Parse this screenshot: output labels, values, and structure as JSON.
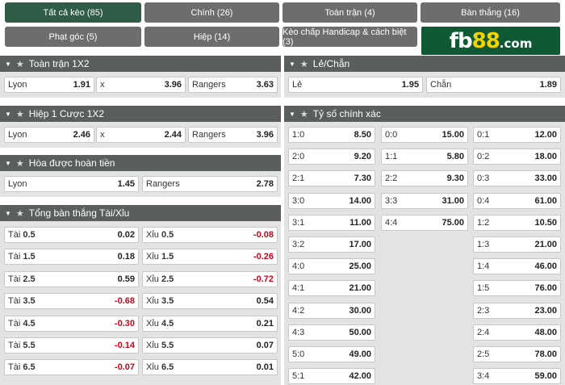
{
  "tabs": [
    {
      "label": "Tất cả kèo (85)"
    },
    {
      "label": "Chính (26)"
    },
    {
      "label": "Toàn trận (4)"
    },
    {
      "label": "Bàn thắng (16)"
    },
    {
      "label": "Phạt góc (5)"
    },
    {
      "label": "Hiệp (14)"
    },
    {
      "label": "Kèo chấp Handicap & cách biệt (3)"
    }
  ],
  "logo": {
    "part1": "fb",
    "part2": "88",
    "part3": ".com"
  },
  "sections": {
    "fulltime_1x2": {
      "title": "Toàn trận 1X2",
      "cells": [
        {
          "label": "Lyon",
          "value": "1.91"
        },
        {
          "label": "x",
          "value": "3.96"
        },
        {
          "label": "Rangers",
          "value": "3.63"
        }
      ]
    },
    "half1_1x2": {
      "title": "Hiệp 1 Cược 1X2",
      "cells": [
        {
          "label": "Lyon",
          "value": "2.46"
        },
        {
          "label": "x",
          "value": "2.44"
        },
        {
          "label": "Rangers",
          "value": "3.96"
        }
      ]
    },
    "draw_no_bet": {
      "title": "Hòa được hoàn tiền",
      "cells": [
        {
          "label": "Lyon",
          "value": "1.45"
        },
        {
          "label": "Rangers",
          "value": "2.78"
        }
      ]
    },
    "over_under": {
      "title": "Tổng bàn thắng Tài/Xỉu",
      "rows": [
        {
          "over_label": "Tài",
          "over_line": "0.5",
          "over_value": "0.02",
          "under_label": "Xỉu",
          "under_line": "0.5",
          "under_value": "-0.08"
        },
        {
          "over_label": "Tài",
          "over_line": "1.5",
          "over_value": "0.18",
          "under_label": "Xỉu",
          "under_line": "1.5",
          "under_value": "-0.26"
        },
        {
          "over_label": "Tài",
          "over_line": "2.5",
          "over_value": "0.59",
          "under_label": "Xỉu",
          "under_line": "2.5",
          "under_value": "-0.72"
        },
        {
          "over_label": "Tài",
          "over_line": "3.5",
          "over_value": "-0.68",
          "under_label": "Xỉu",
          "under_line": "3.5",
          "under_value": "0.54"
        },
        {
          "over_label": "Tài",
          "over_line": "4.5",
          "over_value": "-0.30",
          "under_label": "Xỉu",
          "under_line": "4.5",
          "under_value": "0.21"
        },
        {
          "over_label": "Tài",
          "over_line": "5.5",
          "over_value": "-0.14",
          "under_label": "Xỉu",
          "under_line": "5.5",
          "under_value": "0.07"
        },
        {
          "over_label": "Tài",
          "over_line": "6.5",
          "over_value": "-0.07",
          "under_label": "Xỉu",
          "under_line": "6.5",
          "under_value": "0.01"
        }
      ]
    },
    "odd_even": {
      "title": "Lẻ/Chẵn",
      "cells": [
        {
          "label": "Lẻ",
          "value": "1.95"
        },
        {
          "label": "Chẵn",
          "value": "1.89"
        }
      ]
    },
    "correct_score": {
      "title": "Tỷ số chính xác",
      "col1": [
        {
          "label": "1:0",
          "value": "8.50"
        },
        {
          "label": "2:0",
          "value": "9.20"
        },
        {
          "label": "2:1",
          "value": "7.30"
        },
        {
          "label": "3:0",
          "value": "14.00"
        },
        {
          "label": "3:1",
          "value": "11.00"
        },
        {
          "label": "3:2",
          "value": "17.00"
        },
        {
          "label": "4:0",
          "value": "25.00"
        },
        {
          "label": "4:1",
          "value": "21.00"
        },
        {
          "label": "4:2",
          "value": "30.00"
        },
        {
          "label": "4:3",
          "value": "50.00"
        },
        {
          "label": "5:0",
          "value": "49.00"
        },
        {
          "label": "5:1",
          "value": "42.00"
        }
      ],
      "col2": [
        {
          "label": "0:0",
          "value": "15.00"
        },
        {
          "label": "1:1",
          "value": "5.80"
        },
        {
          "label": "2:2",
          "value": "9.30"
        },
        {
          "label": "3:3",
          "value": "31.00"
        },
        {
          "label": "4:4",
          "value": "75.00"
        }
      ],
      "col3": [
        {
          "label": "0:1",
          "value": "12.00"
        },
        {
          "label": "0:2",
          "value": "18.00"
        },
        {
          "label": "0:3",
          "value": "33.00"
        },
        {
          "label": "0:4",
          "value": "61.00"
        },
        {
          "label": "1:2",
          "value": "10.50"
        },
        {
          "label": "1:3",
          "value": "21.00"
        },
        {
          "label": "1:4",
          "value": "46.00"
        },
        {
          "label": "1:5",
          "value": "76.00"
        },
        {
          "label": "2:3",
          "value": "23.00"
        },
        {
          "label": "2:4",
          "value": "48.00"
        },
        {
          "label": "2:5",
          "value": "78.00"
        },
        {
          "label": "3:4",
          "value": "59.00"
        }
      ]
    }
  },
  "colors": {
    "active_tab": "#2e5c46",
    "tab": "#6d6d6d",
    "header": "#5a5f5c",
    "negative": "#d0021b",
    "logo_bg": "#0f5a35",
    "logo_accent": "#f5d200"
  }
}
